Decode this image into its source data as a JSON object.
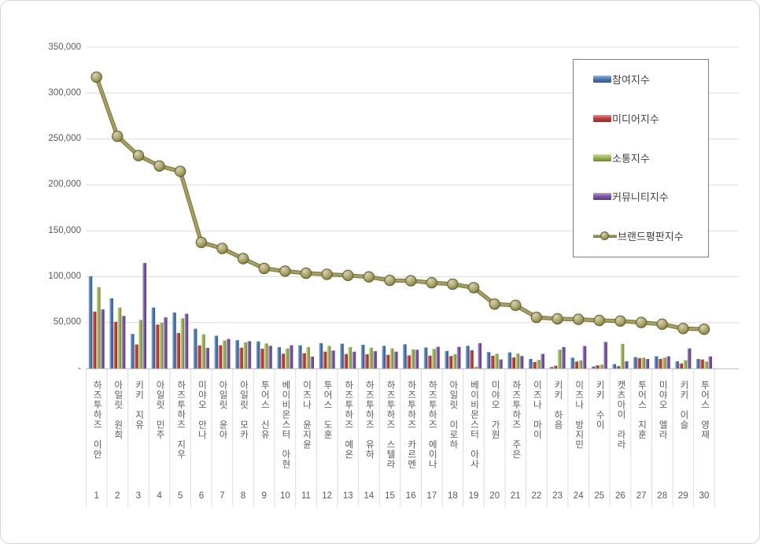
{
  "chart_data": {
    "type": "bar+line",
    "grid": "horizontal",
    "legend_position": "top-right",
    "ylim": [
      0,
      350000
    ],
    "y_ticks": [
      "350,000",
      "300,000",
      "250,000",
      "200,000",
      "150,000",
      "100,000",
      "50,000",
      "-"
    ],
    "ranks": [
      1,
      2,
      3,
      4,
      5,
      6,
      7,
      8,
      9,
      10,
      11,
      12,
      13,
      14,
      15,
      16,
      17,
      18,
      19,
      20,
      21,
      22,
      23,
      24,
      25,
      26,
      27,
      28,
      29,
      30
    ],
    "categories": [
      "하즈투하즈 이안",
      "아일릿 원희",
      "키키 지유",
      "아일릿 민주",
      "하즈투하즈 지우",
      "미야오 안나",
      "아일릿 윤아",
      "아일릿 모카",
      "투어스 신유",
      "베이비몬스터 아현",
      "이즈나 윤지윤",
      "투어스 도훈",
      "하즈투하즈 예온",
      "하즈투하즈 유하",
      "하즈투하즈 스텔라",
      "하즈투하즈 카르멘",
      "하즈투하즈 에이나",
      "아일릿 이로하",
      "베이비몬스터 아사",
      "미야오 가원",
      "하즈투하즈 주은",
      "이즈나 마이",
      "키키 하음",
      "이즈나 방지민",
      "키키 수이",
      "캣츠아이 라라",
      "투어스 지훈",
      "미야오 엘라",
      "키키 이슬",
      "투어스 영재"
    ],
    "bar_series": [
      {
        "name": "참여지수",
        "color": "#4a7cba",
        "values": [
          100500,
          76400,
          37600,
          66400,
          60900,
          43200,
          35600,
          30800,
          29400,
          23200,
          25200,
          27500,
          26900,
          25800,
          24600,
          26300,
          22800,
          19000,
          24700,
          17800,
          17500,
          10400,
          1500,
          11700,
          2200,
          4700,
          12400,
          13200,
          7700,
          10300
        ]
      },
      {
        "name": "미디어지수",
        "color": "#c8403d",
        "values": [
          61900,
          50800,
          26100,
          47700,
          38500,
          25100,
          25200,
          22600,
          21500,
          16000,
          16600,
          18300,
          15700,
          15400,
          14800,
          14200,
          13900,
          13500,
          19800,
          13800,
          12000,
          6900,
          2900,
          7500,
          3300,
          2400,
          11200,
          10400,
          5400,
          9700
        ]
      },
      {
        "name": "소통지수",
        "color": "#9cba52",
        "values": [
          88600,
          66300,
          52900,
          49800,
          54600,
          37200,
          30400,
          28300,
          27200,
          21700,
          23200,
          24600,
          23200,
          22600,
          21900,
          20800,
          21200,
          15500,
          1900,
          16000,
          16200,
          9300,
          20500,
          8800,
          4100,
          26700,
          11800,
          11800,
          8900,
          7500
        ]
      },
      {
        "name": "커뮤니티지수",
        "color": "#7e57ad",
        "values": [
          64300,
          57200,
          114800,
          55600,
          59500,
          22400,
          32100,
          29700,
          24600,
          25200,
          12900,
          19500,
          18200,
          18800,
          18300,
          20300,
          23600,
          23500,
          27600,
          9800,
          13500,
          15800,
          23300,
          24400,
          28800,
          7800,
          10300,
          13200,
          21800,
          13100
        ]
      }
    ],
    "line_series": {
      "name": "브랜드평판지수",
      "color": "#a19b55",
      "values": [
        317400,
        252900,
        231900,
        220600,
        214700,
        137300,
        130700,
        119600,
        108900,
        106000,
        103800,
        102600,
        101400,
        99700,
        95900,
        95500,
        93400,
        91800,
        88000,
        70100,
        68800,
        55700,
        54000,
        53500,
        52300,
        51600,
        50100,
        48200,
        43500,
        42700
      ]
    }
  }
}
